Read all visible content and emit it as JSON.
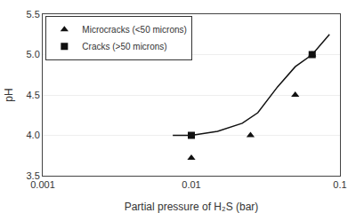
{
  "chart_data": {
    "type": "scatter",
    "xlabel": "Partial pressure of H₂S (bar)",
    "ylabel": "pH",
    "log": "x",
    "xlim": [
      0.001,
      0.1
    ],
    "ylim": [
      3.5,
      5.5
    ],
    "xticks": [
      0.001,
      0.01,
      0.1
    ],
    "yticks": [
      3.5,
      {
        "value": 4.0,
        "label": "4.0"
      },
      4.5,
      {
        "value": 5.0,
        "label": "5.0"
      },
      5.5
    ],
    "grid": "y",
    "legend": "upper left",
    "series": [
      {
        "type": "line",
        "line_style": "solid",
        "color": "#111111",
        "x": [
          0.0075,
          0.01,
          0.015,
          0.022,
          0.028,
          0.038,
          0.05,
          0.065,
          0.085
        ],
        "values": [
          4.0,
          4.0,
          4.05,
          4.15,
          4.28,
          4.6,
          4.85,
          5.0,
          5.25
        ]
      },
      {
        "name": "Microcracks (<50 microns)",
        "type": "scatter",
        "marker": "triangle",
        "color": "#111111",
        "x": [
          0.01,
          0.025,
          0.05,
          0.065
        ],
        "values": [
          3.72,
          4.0,
          4.5,
          5.0
        ]
      },
      {
        "name": "Cracks (>50 microns)",
        "type": "scatter",
        "marker": "square",
        "color": "#111111",
        "x": [
          0.01,
          0.065
        ],
        "values": [
          4.0,
          5.0
        ]
      }
    ]
  }
}
